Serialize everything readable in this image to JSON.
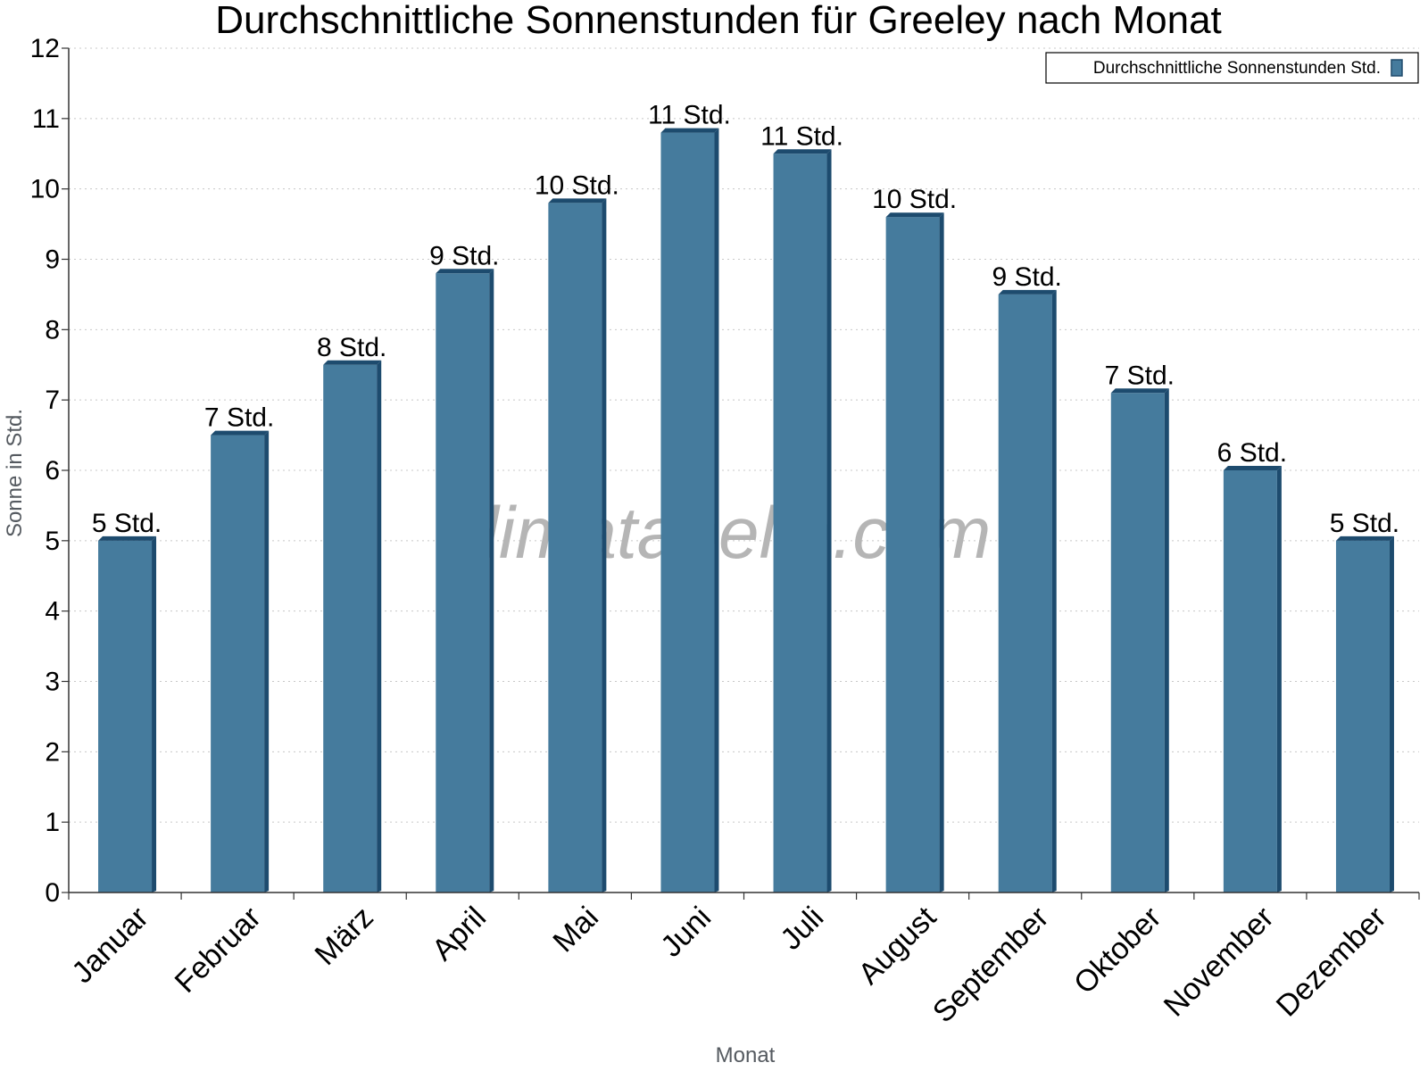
{
  "chart_data": {
    "type": "bar",
    "title": "Durchschnittliche Sonnenstunden für Greeley nach Monat",
    "xlabel": "Monat",
    "ylabel": "Sonne in Std.",
    "ylim": [
      0,
      12
    ],
    "yticks": [
      0,
      1,
      2,
      3,
      4,
      5,
      6,
      7,
      8,
      9,
      10,
      11,
      12
    ],
    "grid": true,
    "legend_position": "top-right",
    "categories": [
      "Januar",
      "Februar",
      "März",
      "April",
      "Mai",
      "Juni",
      "Juli",
      "August",
      "September",
      "Oktober",
      "November",
      "Dezember"
    ],
    "series": [
      {
        "name": "Durchschnittliche Sonnenstunden Std.",
        "values": [
          5.0,
          6.5,
          7.5,
          8.8,
          9.8,
          10.8,
          10.5,
          9.6,
          8.5,
          7.1,
          6.0,
          5.0
        ],
        "labels": [
          "5 Std.",
          "7 Std.",
          "8 Std.",
          "9 Std.",
          "10 Std.",
          "11 Std.",
          "11 Std.",
          "10 Std.",
          "9 Std.",
          "7 Std.",
          "6 Std.",
          "5 Std."
        ],
        "color": "#457b9d"
      }
    ],
    "watermark": "klimatabelle.com"
  }
}
